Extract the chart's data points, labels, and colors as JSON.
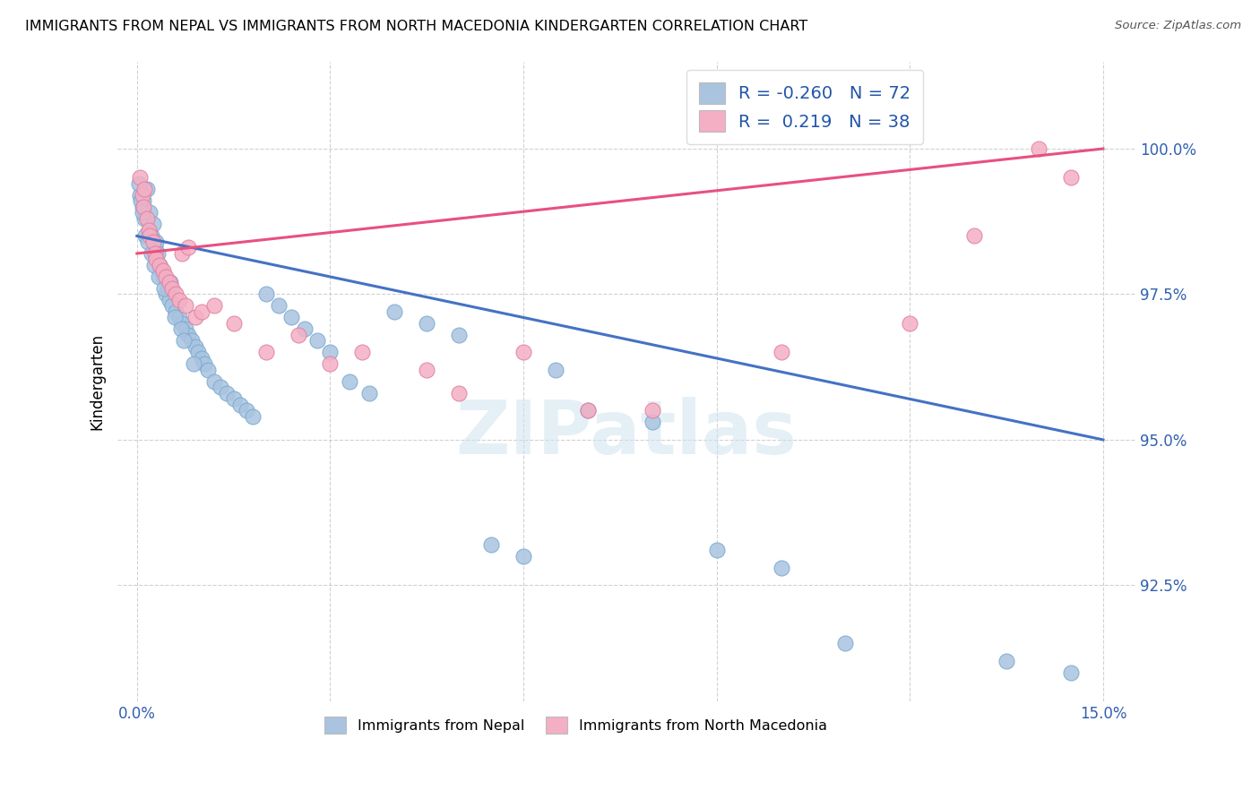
{
  "title": "IMMIGRANTS FROM NEPAL VS IMMIGRANTS FROM NORTH MACEDONIA KINDERGARTEN CORRELATION CHART",
  "source": "Source: ZipAtlas.com",
  "ylabel": "Kindergarten",
  "ytick_labels": [
    "92.5%",
    "95.0%",
    "97.5%",
    "100.0%"
  ],
  "ytick_values": [
    92.5,
    95.0,
    97.5,
    100.0
  ],
  "xlim": [
    0.0,
    15.0
  ],
  "ylim": [
    90.5,
    101.5
  ],
  "legend_nepal_R": "-0.260",
  "legend_nepal_N": "72",
  "legend_macedonia_R": "0.219",
  "legend_macedonia_N": "38",
  "nepal_color": "#aac4e0",
  "nepal_edge_color": "#7aaad0",
  "nepal_line_color": "#4472c4",
  "macedonia_color": "#f4afc4",
  "macedonia_edge_color": "#e080a0",
  "macedonia_line_color": "#e85080",
  "watermark": "ZIPatlas",
  "nepal_trend_x0": 0.0,
  "nepal_trend_x1": 15.0,
  "nepal_trend_y0": 98.5,
  "nepal_trend_y1": 95.0,
  "mac_trend_x0": 0.0,
  "mac_trend_x1": 15.0,
  "mac_trend_y0": 98.2,
  "mac_trend_y1": 100.0,
  "nepal_scatter_x": [
    0.05,
    0.08,
    0.1,
    0.12,
    0.15,
    0.18,
    0.2,
    0.22,
    0.25,
    0.28,
    0.3,
    0.32,
    0.35,
    0.38,
    0.4,
    0.45,
    0.48,
    0.5,
    0.52,
    0.55,
    0.6,
    0.65,
    0.7,
    0.75,
    0.8,
    0.85,
    0.9,
    0.95,
    1.0,
    1.05,
    1.1,
    1.2,
    1.3,
    1.4,
    1.5,
    1.6,
    1.7,
    1.8,
    2.0,
    2.2,
    2.4,
    2.6,
    2.8,
    3.0,
    3.3,
    3.6,
    4.0,
    4.5,
    5.0,
    5.5,
    6.0,
    6.5,
    7.0,
    8.0,
    9.0,
    10.0,
    11.0,
    13.5,
    14.5,
    0.03,
    0.06,
    0.09,
    0.13,
    0.17,
    0.23,
    0.27,
    0.33,
    0.42,
    0.58,
    0.68,
    0.72,
    0.88
  ],
  "nepal_scatter_y": [
    99.2,
    99.0,
    99.1,
    98.8,
    99.3,
    98.6,
    98.9,
    98.5,
    98.7,
    98.3,
    98.4,
    98.2,
    98.0,
    97.9,
    97.8,
    97.5,
    97.6,
    97.4,
    97.7,
    97.3,
    97.2,
    97.1,
    97.0,
    96.9,
    96.8,
    96.7,
    96.6,
    96.5,
    96.4,
    96.3,
    96.2,
    96.0,
    95.9,
    95.8,
    95.7,
    95.6,
    95.5,
    95.4,
    97.5,
    97.3,
    97.1,
    96.9,
    96.7,
    96.5,
    96.0,
    95.8,
    97.2,
    97.0,
    96.8,
    93.2,
    93.0,
    96.2,
    95.5,
    95.3,
    93.1,
    92.8,
    91.5,
    91.2,
    91.0,
    99.4,
    99.1,
    98.9,
    98.5,
    98.4,
    98.2,
    98.0,
    97.8,
    97.6,
    97.1,
    96.9,
    96.7,
    96.3
  ],
  "mac_scatter_x": [
    0.05,
    0.08,
    0.1,
    0.15,
    0.18,
    0.2,
    0.25,
    0.28,
    0.3,
    0.35,
    0.4,
    0.45,
    0.5,
    0.55,
    0.6,
    0.65,
    0.7,
    0.75,
    0.8,
    0.9,
    1.0,
    1.2,
    1.5,
    2.0,
    2.5,
    3.0,
    3.5,
    4.5,
    5.0,
    6.0,
    7.0,
    8.0,
    10.0,
    12.0,
    13.0,
    14.0,
    14.5,
    0.12
  ],
  "mac_scatter_y": [
    99.5,
    99.2,
    99.0,
    98.8,
    98.6,
    98.5,
    98.4,
    98.2,
    98.1,
    98.0,
    97.9,
    97.8,
    97.7,
    97.6,
    97.5,
    97.4,
    98.2,
    97.3,
    98.3,
    97.1,
    97.2,
    97.3,
    97.0,
    96.5,
    96.8,
    96.3,
    96.5,
    96.2,
    95.8,
    96.5,
    95.5,
    95.5,
    96.5,
    97.0,
    98.5,
    100.0,
    99.5,
    99.3
  ]
}
